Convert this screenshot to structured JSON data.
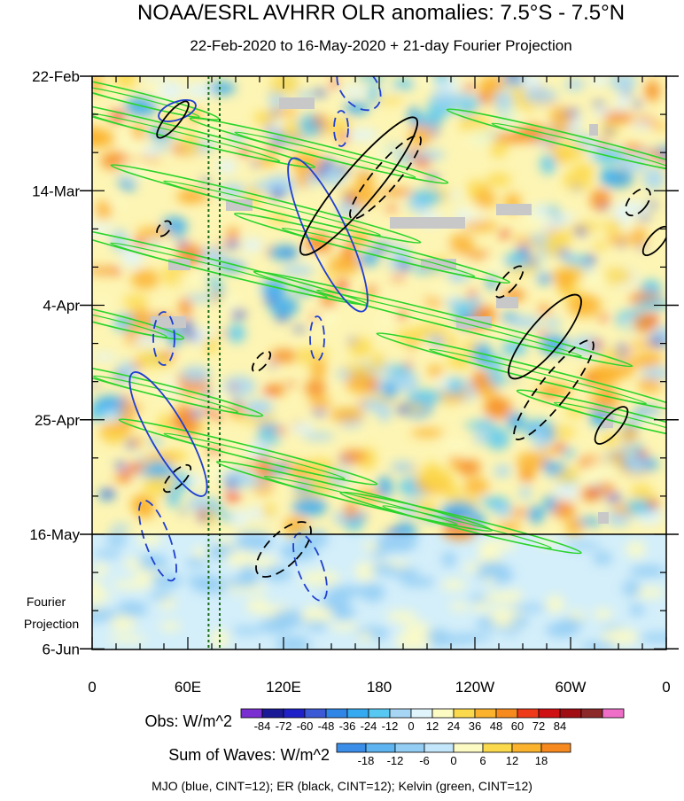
{
  "chart_data": {
    "type": "heatmap",
    "title": "NOAA/ESRL AVHRR OLR anomalies: 7.5°S - 7.5°N",
    "subtitle": "22-Feb-2020 to 16-May-2020 + 21-day Fourier Projection",
    "y_tick_labels": [
      "22-Feb",
      "14-Mar",
      "4-Apr",
      "25-Apr",
      "16-May",
      "6-Jun"
    ],
    "projection_label_lines": [
      "Fourier",
      "Projection"
    ],
    "x_tick_labels": [
      "0",
      "60E",
      "120E",
      "180",
      "120W",
      "60W",
      "0"
    ],
    "x_ticks_lon": [
      0,
      60,
      120,
      180,
      240,
      300,
      360
    ],
    "xlim": [
      0,
      360
    ],
    "ylim": [
      "22-Feb-2020",
      "6-Jun-2020"
    ],
    "obs_end_date": "16-May-2020",
    "reference_lines_lon": [
      73,
      80
    ],
    "obs_legend": {
      "label": "Obs: W/m^2",
      "ticks": [
        "-84",
        "-72",
        "-60",
        "-48",
        "-36",
        "-24",
        "-12",
        "0",
        "12",
        "24",
        "36",
        "48",
        "60",
        "72",
        "84"
      ],
      "colors": [
        "#7a2fd0",
        "#1a1a96",
        "#2020c8",
        "#3c5ad6",
        "#2f86e6",
        "#36aaf0",
        "#57c8f2",
        "#a6d6f4",
        "#e0f4fb",
        "#fdfbc4",
        "#fbd94d",
        "#fbb22d",
        "#f68a1e",
        "#ee3a18",
        "#cf1114",
        "#a00e14",
        "#8c2a2a",
        "#ef6fc8"
      ]
    },
    "waves_legend": {
      "label": "Sum of Waves: W/m^2",
      "ticks": [
        "-18",
        "-12",
        "-6",
        "0",
        "6",
        "12",
        "18"
      ],
      "colors": [
        "#3a8ee8",
        "#5db4f0",
        "#93cdf4",
        "#c4e6fa",
        "#fdfbc4",
        "#fbd94d",
        "#fbb22d",
        "#f68a1e"
      ]
    },
    "contour_note": "MJO (blue, CINT=12); ER (black, CINT=12); Kelvin (green, CINT=12)",
    "contour_colors": {
      "mjo": "#1f3fd0",
      "er": "#000000",
      "kelvin": "#2bd42b"
    },
    "background_colors": {
      "obs": "#fdf5b4",
      "projection": "#d4effa",
      "missing": "#c8c8c8"
    }
  }
}
